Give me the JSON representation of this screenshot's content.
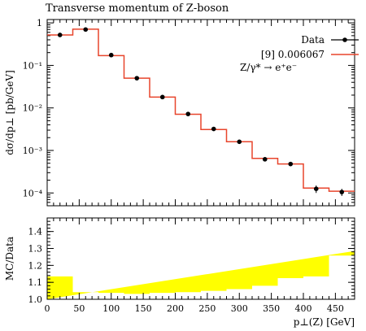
{
  "chart_data": [
    {
      "type": "line",
      "title": "Transverse momentum of Z-boson",
      "xlabel": "p⊥(Z) [GeV]",
      "ylabel": "dσ/dp⊥ [pb/GeV]",
      "yscale": "log",
      "xlim": [
        0,
        480
      ],
      "ylim": [
        5e-05,
        1.2
      ],
      "bin_edges": [
        0,
        40,
        80,
        120,
        160,
        200,
        240,
        280,
        320,
        360,
        400,
        440,
        480
      ],
      "y_tick_labels": [
        "1",
        "10⁻¹",
        "10⁻²",
        "10⁻³",
        "10⁻⁴"
      ],
      "y_tick_values": [
        1,
        0.1,
        0.01,
        0.001,
        0.0001
      ],
      "legend": {
        "placement": "top-right",
        "entries": [
          "Data",
          "[9] 0.006067"
        ],
        "process": "Z/γ* → e⁺e⁻"
      },
      "series": [
        {
          "name": "Data",
          "x": [
            20,
            60,
            100,
            140,
            180,
            220,
            260,
            300,
            340,
            380,
            420,
            460
          ],
          "y": [
            0.52,
            0.7,
            0.175,
            0.05,
            0.018,
            0.0072,
            0.0032,
            0.0016,
            0.00062,
            0.00048,
            0.000125,
            0.000105
          ],
          "yerr": [
            0,
            0,
            0,
            0,
            0,
            0,
            0,
            0,
            0,
            0,
            2.5e-05,
            2e-05
          ],
          "color": "#000000"
        },
        {
          "name": "[9] 0.006067",
          "y": [
            0.52,
            0.71,
            0.17,
            0.05,
            0.018,
            0.0071,
            0.0031,
            0.0016,
            0.00065,
            0.00048,
            0.00013,
            0.00011
          ],
          "color": "#e8452c"
        }
      ]
    },
    {
      "type": "area",
      "ylabel": "MC/Data",
      "xlabel": "p⊥(Z) [GeV]",
      "ylim": [
        1.0,
        1.48
      ],
      "xlim": [
        0,
        480
      ],
      "x_tick_labels": [
        "0",
        "50",
        "100",
        "150",
        "200",
        "250",
        "300",
        "350",
        "400",
        "450"
      ],
      "x_tick_values": [
        0,
        50,
        100,
        150,
        200,
        250,
        300,
        350,
        400,
        450
      ],
      "y_tick_labels": [
        "1.0",
        "1.1",
        "1.2",
        "1.3",
        "1.4"
      ],
      "y_tick_values": [
        1.0,
        1.1,
        1.2,
        1.3,
        1.4
      ],
      "bin_edges": [
        0,
        40,
        80,
        120,
        160,
        200,
        240,
        280,
        320,
        360,
        400,
        440,
        480
      ],
      "series": [
        {
          "values": [
            1.135,
            1.042,
            1.038,
            1.032,
            1.038,
            1.042,
            1.05,
            1.06,
            1.08,
            1.125,
            1.135,
            1.258,
            1.285
          ],
          "color": "#ffff00"
        }
      ]
    }
  ]
}
